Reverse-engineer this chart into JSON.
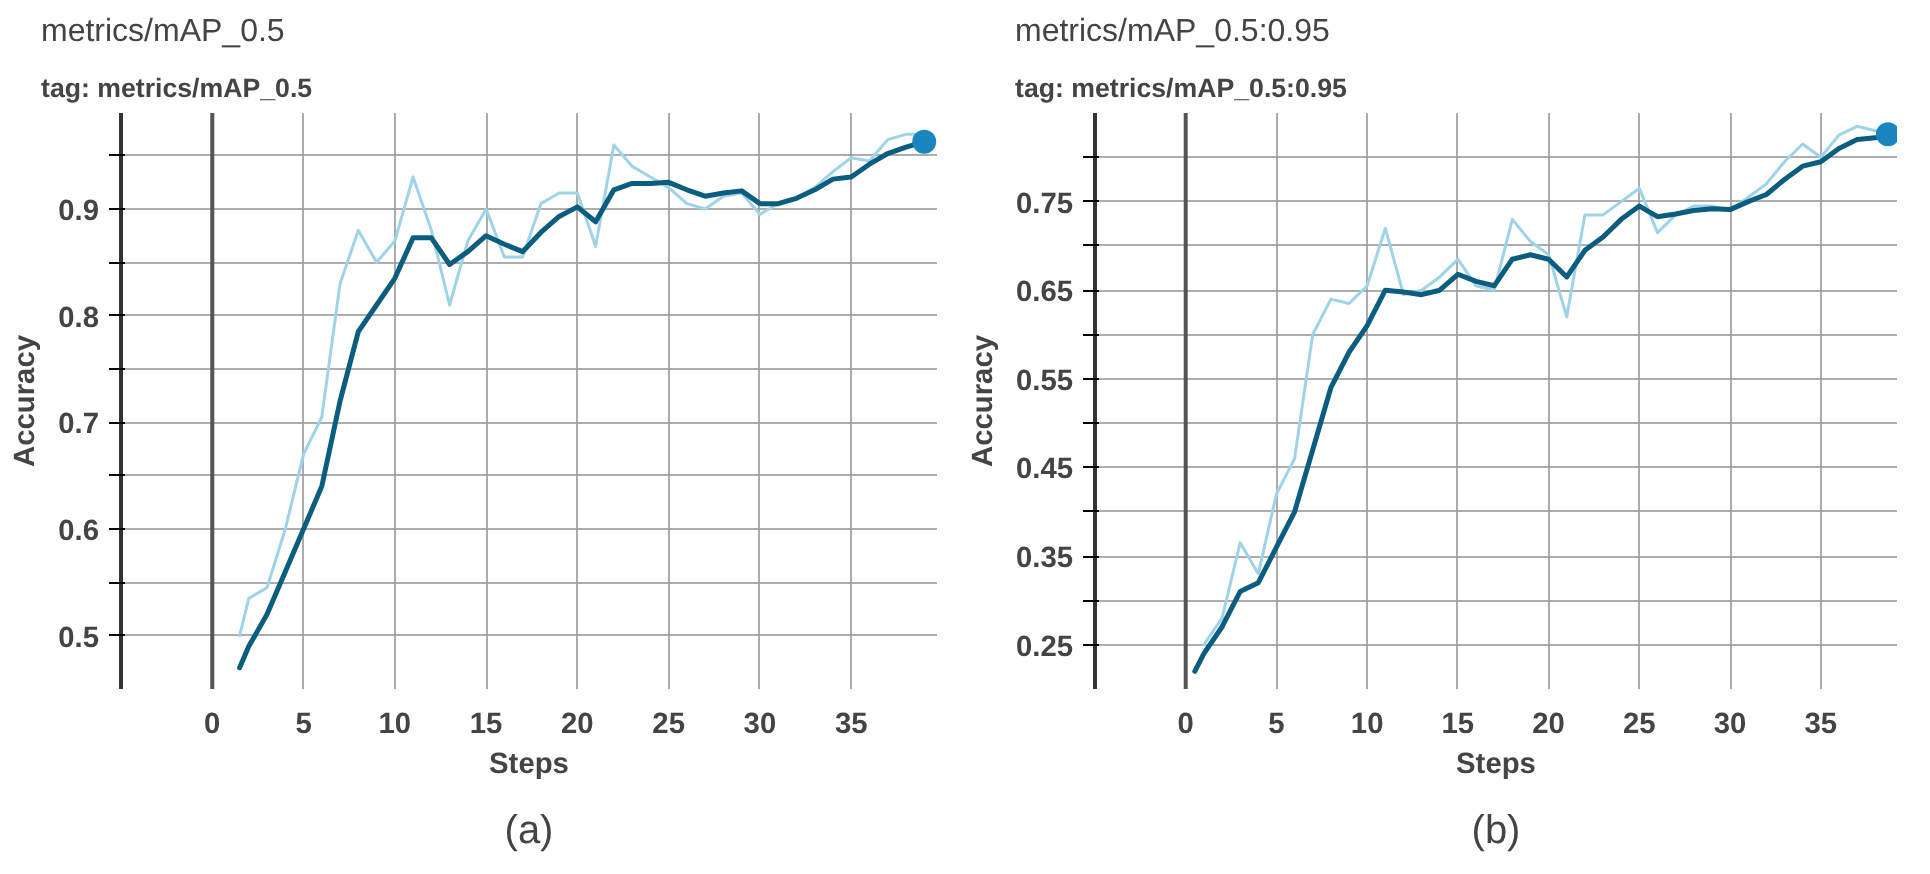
{
  "chart_data": [
    {
      "type": "line",
      "title": "metrics/mAP_0.5",
      "subtitle": "tag: metrics/mAP_0.5",
      "xlabel": "Steps",
      "ylabel": "Accuracy",
      "annotations": [
        "(a)"
      ],
      "xlim": [
        -5,
        39.7
      ],
      "xticks": [
        0,
        5,
        10,
        15,
        20,
        25,
        30,
        35
      ],
      "ylim": [
        0.45,
        0.99
      ],
      "yticks": [
        {
          "value": 0.5,
          "label": "0.5"
        },
        {
          "value": 0.55,
          "label": null
        },
        {
          "value": 0.6,
          "label": "0.6"
        },
        {
          "value": 0.65,
          "label": null
        },
        {
          "value": 0.7,
          "label": "0.7"
        },
        {
          "value": 0.75,
          "label": null
        },
        {
          "value": 0.8,
          "label": "0.8"
        },
        {
          "value": 0.85,
          "label": null
        },
        {
          "value": 0.9,
          "label": "0.9"
        },
        {
          "value": 0.95,
          "label": null
        }
      ],
      "grid": true,
      "ref_lines": [
        {
          "axis": "x",
          "value": 0,
          "color": "#555555"
        }
      ],
      "series": [
        {
          "color": "#9fd3e8",
          "x": [
            1.5,
            2,
            3,
            4,
            5,
            6,
            7,
            8,
            9,
            10,
            11,
            12,
            13,
            14,
            15,
            16,
            17,
            18,
            19,
            20,
            21,
            22,
            23,
            24,
            25,
            26,
            27,
            28,
            29,
            30,
            31,
            32,
            33,
            34,
            35,
            36,
            37,
            38,
            39
          ],
          "values": [
            0.5,
            0.535,
            0.545,
            0.6,
            0.67,
            0.705,
            0.83,
            0.88,
            0.85,
            0.87,
            0.93,
            0.88,
            0.81,
            0.87,
            0.9,
            0.855,
            0.855,
            0.905,
            0.915,
            0.915,
            0.865,
            0.96,
            0.94,
            0.93,
            0.92,
            0.905,
            0.9,
            0.912,
            0.915,
            0.895,
            0.905,
            0.91,
            0.92,
            0.935,
            0.948,
            0.945,
            0.965,
            0.97,
            0.97
          ]
        },
        {
          "color": "#0b5d80",
          "x": [
            1.5,
            2,
            3,
            4,
            5,
            6,
            7,
            8,
            9,
            10,
            11,
            12,
            13,
            14,
            15,
            16,
            17,
            18,
            19,
            20,
            21,
            22,
            23,
            24,
            25,
            26,
            27,
            28,
            29,
            30,
            31,
            32,
            33,
            34,
            35,
            36,
            37,
            38,
            39
          ],
          "values": [
            0.47,
            0.49,
            0.52,
            0.56,
            0.6,
            0.64,
            0.72,
            0.785,
            0.81,
            0.835,
            0.873,
            0.873,
            0.848,
            0.86,
            0.875,
            0.867,
            0.86,
            0.878,
            0.893,
            0.902,
            0.888,
            0.918,
            0.924,
            0.924,
            0.925,
            0.918,
            0.912,
            0.915,
            0.917,
            0.905,
            0.905,
            0.91,
            0.918,
            0.928,
            0.93,
            0.942,
            0.952,
            0.958,
            0.963
          ]
        },
        {
          "type": "scatter",
          "color": "#1a86c0",
          "x": [
            39
          ],
          "values": [
            0.963
          ]
        }
      ]
    },
    {
      "type": "line",
      "title": "metrics/mAP_0.5:0.95",
      "subtitle": "tag: metrics/mAP_0.5:0.95",
      "xlabel": "Steps",
      "ylabel": "Accuracy",
      "annotations": [
        "(b)"
      ],
      "xlim": [
        -5,
        39.2
      ],
      "xticks": [
        0,
        5,
        10,
        15,
        20,
        25,
        30,
        35
      ],
      "ylim": [
        0.2,
        0.85
      ],
      "yticks": [
        {
          "value": 0.25,
          "label": "0.25"
        },
        {
          "value": 0.3,
          "label": null
        },
        {
          "value": 0.35,
          "label": "0.35"
        },
        {
          "value": 0.4,
          "label": null
        },
        {
          "value": 0.45,
          "label": "0.45"
        },
        {
          "value": 0.5,
          "label": null
        },
        {
          "value": 0.55,
          "label": "0.55"
        },
        {
          "value": 0.6,
          "label": null
        },
        {
          "value": 0.65,
          "label": "0.65"
        },
        {
          "value": 0.7,
          "label": null
        },
        {
          "value": 0.75,
          "label": "0.75"
        },
        {
          "value": 0.8,
          "label": null
        }
      ],
      "grid": true,
      "ref_lines": [
        {
          "axis": "x",
          "value": 0,
          "color": "#555555"
        }
      ],
      "series": [
        {
          "color": "#9fd3e8",
          "x": [
            1,
            2,
            3,
            4,
            5,
            6,
            7,
            8,
            9,
            10,
            11,
            12,
            13,
            14,
            15,
            16,
            17,
            18,
            19,
            20,
            21,
            22,
            23,
            24,
            25,
            26,
            27,
            28,
            29,
            30,
            31,
            32,
            33,
            34,
            35,
            36,
            37,
            38,
            38.7
          ],
          "values": [
            0.25,
            0.28,
            0.365,
            0.33,
            0.42,
            0.46,
            0.6,
            0.64,
            0.635,
            0.655,
            0.72,
            0.645,
            0.65,
            0.665,
            0.685,
            0.655,
            0.65,
            0.73,
            0.705,
            0.69,
            0.62,
            0.735,
            0.735,
            0.75,
            0.765,
            0.715,
            0.735,
            0.745,
            0.745,
            0.74,
            0.755,
            0.77,
            0.795,
            0.815,
            0.8,
            0.825,
            0.835,
            0.83,
            0.83
          ]
        },
        {
          "color": "#0b5d80",
          "x": [
            0.5,
            1,
            2,
            3,
            4,
            5,
            6,
            7,
            8,
            9,
            10,
            11,
            12,
            13,
            14,
            15,
            16,
            17,
            18,
            19,
            20,
            21,
            22,
            23,
            24,
            25,
            26,
            27,
            28,
            29,
            30,
            31,
            32,
            33,
            34,
            35,
            36,
            37,
            38,
            38.7
          ],
          "values": [
            0.22,
            0.24,
            0.27,
            0.31,
            0.32,
            0.36,
            0.4,
            0.47,
            0.54,
            0.58,
            0.61,
            0.65,
            0.648,
            0.645,
            0.65,
            0.668,
            0.66,
            0.655,
            0.685,
            0.69,
            0.685,
            0.665,
            0.695,
            0.71,
            0.73,
            0.745,
            0.733,
            0.736,
            0.74,
            0.742,
            0.741,
            0.75,
            0.758,
            0.775,
            0.79,
            0.795,
            0.81,
            0.82,
            0.822,
            0.826
          ]
        },
        {
          "type": "scatter",
          "color": "#1a86c0",
          "x": [
            38.7
          ],
          "values": [
            0.826
          ]
        }
      ]
    }
  ]
}
